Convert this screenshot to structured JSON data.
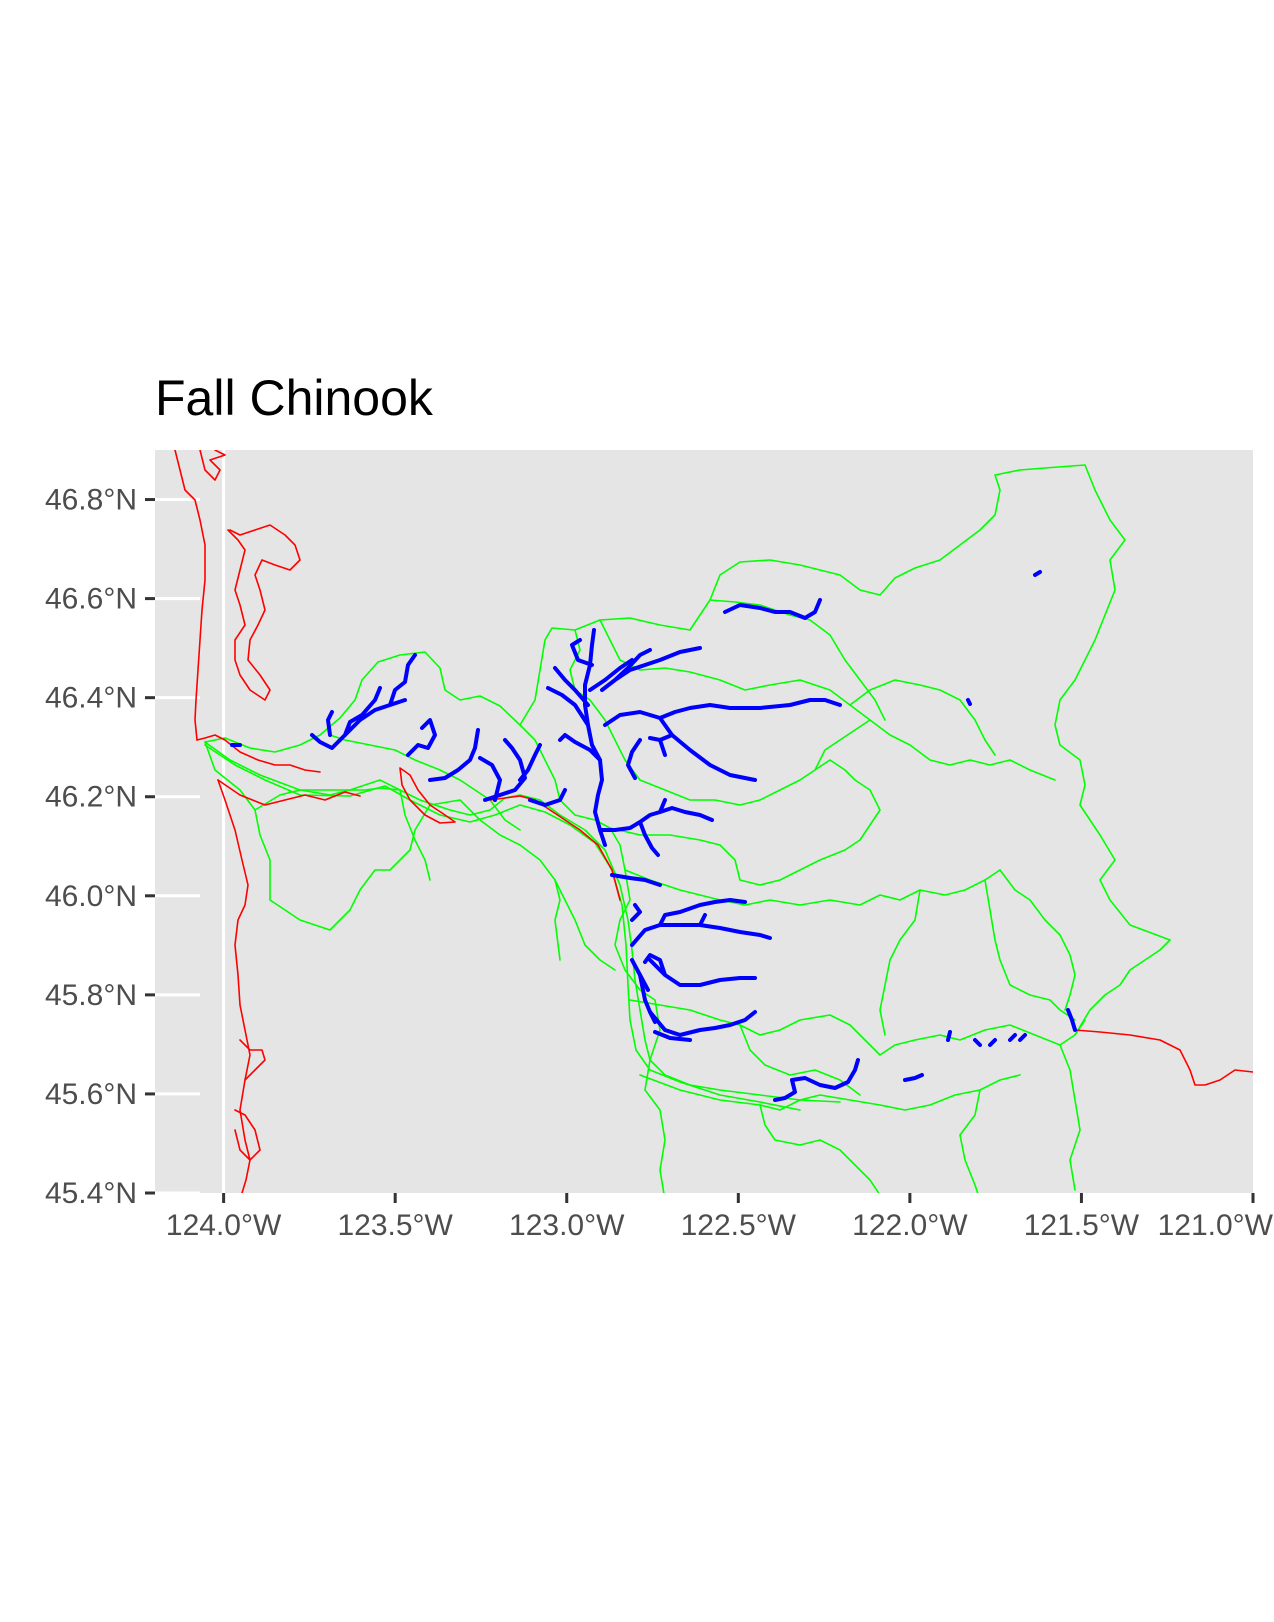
{
  "title": "Fall Chinook",
  "colors": {
    "panel_background": "#e5e5e5",
    "gridline": "#ffffff",
    "coastline_and_rivers_outline": "#ff0000",
    "watershed_boundaries": "#00ff00",
    "fall_chinook_streams": "#0000ff",
    "axis_ticks": "#333333",
    "tick_labels": "#4d4d4d"
  },
  "map": {
    "projection": "longitude/latitude",
    "extent": {
      "lon_min": -124.2,
      "lon_max": -121.0,
      "lat_min": 45.4,
      "lat_max": 46.9
    },
    "x_axis": {
      "breaks": [
        -124.0,
        -123.5,
        -123.0,
        -122.5,
        -122.0,
        -121.5,
        -121.0
      ],
      "labels": [
        "124.0°W",
        "123.5°W",
        "123.0°W",
        "122.5°W",
        "122.0°W",
        "121.5°W",
        "121.0°W"
      ]
    },
    "y_axis": {
      "breaks": [
        46.8,
        46.6,
        46.4,
        46.2,
        46.0,
        45.8,
        45.6,
        45.4
      ],
      "labels": [
        "46.8°N",
        "46.6°N",
        "46.4°N",
        "46.2°N",
        "46.0°N",
        "45.8°N",
        "45.6°N",
        "45.4°N"
      ]
    },
    "gridlines_visible": "longitude -124.0 only within the panel; latitude gridlines on the left edge",
    "layers": [
      {
        "name": "coastline",
        "color": "#ff0000",
        "geometry": "lines"
      },
      {
        "name": "watershed-boundaries",
        "color": "#00ff00",
        "geometry": "polygons"
      },
      {
        "name": "fall-chinook-streams",
        "color": "#0000ff",
        "geometry": "lines"
      }
    ]
  }
}
